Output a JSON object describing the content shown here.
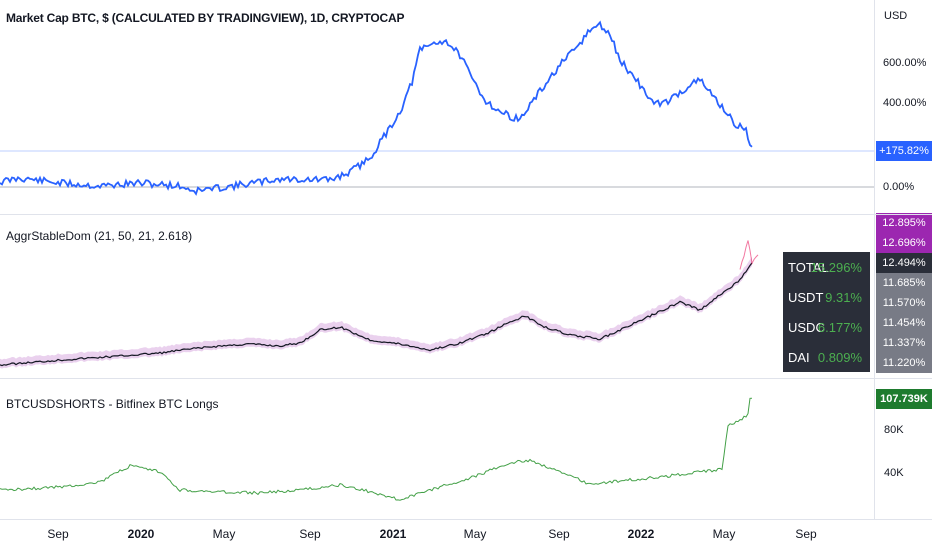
{
  "colors": {
    "price_line": "#2962ff",
    "baseline": "#2962ff",
    "purple_tag": "#9c27b0",
    "dark_tag": "#2a2e39",
    "gray_tag": "#787b86",
    "green_tag": "#1e7b2e",
    "longs_line": "#43a047",
    "panel_value": "#4caf50"
  },
  "pane1": {
    "title": "Market Cap BTC, $ (CALCULATED BY TRADINGVIEW), 1D, CRYPTOCAP",
    "currency": "USD",
    "ticks": [
      "600.00%",
      "400.00%",
      "0.00%"
    ],
    "current_tag": "+175.82%"
  },
  "pane2": {
    "title": "AggrStableDom (21, 50, 21, 2.618)",
    "tags_purple": [
      "12.895%",
      "12.696%"
    ],
    "tag_current": "12.494%",
    "tags_gray": [
      "11.685%",
      "11.570%",
      "11.454%",
      "11.337%",
      "11.220%"
    ],
    "panel_rows": [
      {
        "key": "TOTAL",
        "value": "15.296%"
      },
      {
        "key": "USDT",
        "value": "9.31%"
      },
      {
        "key": "USDC",
        "value": "6.177%"
      },
      {
        "key": "DAI",
        "value": "0.809%"
      }
    ]
  },
  "pane3": {
    "title": "BTCUSDSHORTS - Bitfinex BTC Longs",
    "ticks": [
      "80K",
      "40K"
    ],
    "current_tag": "107.739K"
  },
  "xaxis": {
    "ticks": [
      "Sep",
      "2020",
      "May",
      "Sep",
      "2021",
      "May",
      "Sep",
      "2022",
      "May",
      "Sep"
    ]
  }
}
